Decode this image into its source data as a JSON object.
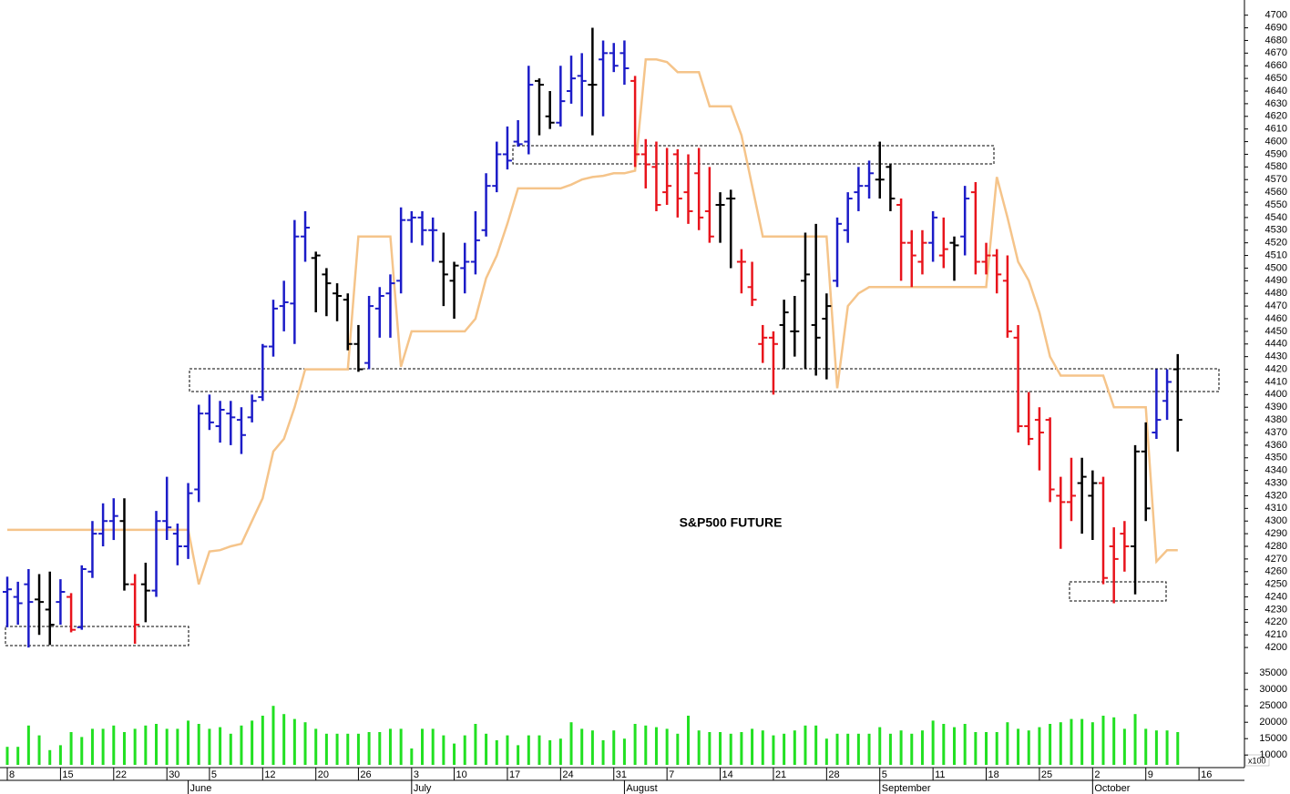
{
  "chart_data": {
    "type": "ohlc",
    "title": "S&P500 FUTURE",
    "xlim": [
      -0.685,
      116.27
    ],
    "ylim": [
      4190,
      4712
    ],
    "yticks": [
      4200,
      4210,
      4220,
      4230,
      4240,
      4250,
      4260,
      4270,
      4280,
      4290,
      4300,
      4310,
      4320,
      4330,
      4340,
      4350,
      4360,
      4370,
      4380,
      4390,
      4400,
      4410,
      4420,
      4430,
      4440,
      4450,
      4460,
      4470,
      4480,
      4490,
      4500,
      4510,
      4520,
      4530,
      4540,
      4550,
      4560,
      4570,
      4580,
      4590,
      4600,
      4610,
      4620,
      4630,
      4640,
      4650,
      4660,
      4670,
      4680,
      4690,
      4700
    ],
    "xticks": [
      {
        "value": 0,
        "label": "8"
      },
      {
        "value": 5,
        "label": "15"
      },
      {
        "value": 10,
        "label": "22"
      },
      {
        "value": 15,
        "label": "30"
      },
      {
        "value": 19,
        "label": "5"
      },
      {
        "value": 24,
        "label": "12"
      },
      {
        "value": 29,
        "label": "20"
      },
      {
        "value": 33,
        "label": "26"
      },
      {
        "value": 38,
        "label": "3"
      },
      {
        "value": 42,
        "label": "10"
      },
      {
        "value": 47,
        "label": "17"
      },
      {
        "value": 52,
        "label": "24"
      },
      {
        "value": 57,
        "label": "31"
      },
      {
        "value": 62,
        "label": "7"
      },
      {
        "value": 67,
        "label": "14"
      },
      {
        "value": 72,
        "label": "21"
      },
      {
        "value": 77,
        "label": "28"
      },
      {
        "value": 82,
        "label": "5"
      },
      {
        "value": 87,
        "label": "11"
      },
      {
        "value": 92,
        "label": "18"
      },
      {
        "value": 97,
        "label": "25"
      },
      {
        "value": 102,
        "label": "2"
      },
      {
        "value": 107,
        "label": "9"
      },
      {
        "value": 112,
        "label": "16"
      }
    ],
    "month_ticks": [
      {
        "value": 17,
        "label": "June"
      },
      {
        "value": 38,
        "label": "July"
      },
      {
        "value": 58,
        "label": "August"
      },
      {
        "value": 82,
        "label": "September"
      },
      {
        "value": 102,
        "label": "October"
      }
    ],
    "series": [
      {
        "color": "#1c1cc8",
        "x": [
          0,
          1,
          2,
          5,
          7,
          8,
          9,
          10,
          14,
          15,
          16,
          17,
          18,
          19,
          20,
          21,
          22,
          23,
          24,
          25,
          26,
          27,
          28,
          34,
          35,
          36,
          37,
          38,
          39,
          40,
          43,
          44,
          45,
          46,
          47,
          48,
          49,
          52,
          53,
          54,
          56,
          57,
          58,
          78,
          79,
          80,
          81,
          87,
          90,
          108,
          109
        ],
        "open": [
          4244,
          4240,
          4250,
          4236,
          4216,
          4260,
          4290,
          4300,
          4245,
          4300,
          4290,
          4280,
          4325,
          4385,
          4375,
          4385,
          4380,
          4382,
          4398,
          4438,
          4470,
          4472,
          4525,
          4425,
          4468,
          4480,
          4490,
          4538,
          4540,
          4530,
          4500,
          4505,
          4530,
          4565,
          4590,
          4600,
          4600,
          4615,
          4640,
          4652,
          4665,
          4670,
          4670,
          4490,
          4530,
          4560,
          4565,
          4520,
          4525,
          4370,
          4395
        ],
        "high": [
          4256,
          4252,
          4262,
          4254,
          4265,
          4300,
          4314,
          4318,
          4308,
          4335,
          4298,
          4330,
          4392,
          4400,
          4395,
          4395,
          4390,
          4400,
          4440,
          4475,
          4490,
          4538,
          4545,
          4478,
          4485,
          4495,
          4548,
          4545,
          4545,
          4540,
          4520,
          4545,
          4575,
          4600,
          4612,
          4617,
          4660,
          4660,
          4668,
          4670,
          4680,
          4678,
          4680,
          4540,
          4560,
          4580,
          4585,
          4545,
          4565,
          4420,
          4420
        ],
        "low": [
          4216,
          4218,
          4200,
          4218,
          4214,
          4255,
          4280,
          4285,
          4240,
          4285,
          4265,
          4270,
          4315,
          4372,
          4362,
          4360,
          4353,
          4378,
          4395,
          4430,
          4450,
          4440,
          4505,
          4420,
          4445,
          4445,
          4480,
          4520,
          4518,
          4505,
          4480,
          4495,
          4525,
          4560,
          4578,
          4596,
          4590,
          4612,
          4630,
          4620,
          4620,
          4655,
          4645,
          4485,
          4520,
          4545,
          4555,
          4505,
          4510,
          4365,
          4380
        ],
        "close": [
          4246,
          4235,
          4236,
          4244,
          4262,
          4290,
          4300,
          4304,
          4300,
          4295,
          4280,
          4322,
          4385,
          4378,
          4388,
          4382,
          4368,
          4395,
          4438,
          4468,
          4473,
          4525,
          4532,
          4470,
          4478,
          4488,
          4538,
          4540,
          4530,
          4530,
          4505,
          4522,
          4565,
          4590,
          4585,
          4598,
          4645,
          4632,
          4650,
          4648,
          4670,
          4660,
          4658,
          4535,
          4555,
          4565,
          4575,
          4540,
          4555,
          4380,
          4410
        ]
      },
      {
        "color": "#000000",
        "x": [
          3,
          4,
          11,
          13,
          29,
          30,
          31,
          32,
          33,
          41,
          42,
          50,
          51,
          55,
          67,
          68,
          73,
          74,
          75,
          76,
          77,
          82,
          83,
          89,
          101,
          102,
          106,
          107,
          110
        ],
        "open": [
          4238,
          4230,
          4300,
          4250,
          4508,
          4495,
          4480,
          4475,
          4440,
          4505,
          4490,
          4648,
          4620,
          4645,
          4550,
          4555,
          4455,
          4450,
          4490,
          4455,
          4460,
          4570,
          4580,
          4520,
          4330,
          4320,
          4280,
          4355,
          4420
        ],
        "high": [
          4258,
          4260,
          4318,
          4267,
          4513,
          4500,
          4488,
          4480,
          4455,
          4528,
          4505,
          4650,
          4640,
          4690,
          4560,
          4562,
          4475,
          4478,
          4528,
          4535,
          4480,
          4600,
          4582,
          4525,
          4350,
          4340,
          4360,
          4378,
          4432
        ],
        "low": [
          4210,
          4202,
          4245,
          4220,
          4465,
          4462,
          4458,
          4435,
          4418,
          4470,
          4460,
          4605,
          4610,
          4605,
          4520,
          4500,
          4420,
          4430,
          4420,
          4415,
          4412,
          4555,
          4545,
          4490,
          4290,
          4285,
          4242,
          4300,
          4355
        ],
        "close": [
          4236,
          4218,
          4250,
          4245,
          4510,
          4488,
          4478,
          4440,
          4420,
          4495,
          4502,
          4645,
          4615,
          4645,
          4550,
          4555,
          4465,
          4450,
          4495,
          4445,
          4470,
          4570,
          4555,
          4518,
          4335,
          4330,
          4355,
          4310,
          4380
        ]
      },
      {
        "color": "#e8141c",
        "x": [
          6,
          12,
          59,
          60,
          61,
          62,
          63,
          64,
          65,
          66,
          69,
          70,
          71,
          72,
          84,
          85,
          86,
          88,
          91,
          92,
          93,
          94,
          95,
          96,
          97,
          98,
          99,
          100,
          103,
          104,
          105
        ],
        "open": [
          4240,
          4250,
          4648,
          4590,
          4580,
          4560,
          4590,
          4560,
          4575,
          4545,
          4505,
          4485,
          4440,
          4445,
          4550,
          4520,
          4505,
          4510,
          4560,
          4505,
          4510,
          4490,
          4445,
          4375,
          4380,
          4380,
          4320,
          4315,
          4330,
          4280,
          4290
        ],
        "high": [
          4243,
          4258,
          4652,
          4602,
          4600,
          4595,
          4594,
          4590,
          4595,
          4580,
          4515,
          4505,
          4455,
          4450,
          4555,
          4530,
          4530,
          4540,
          4568,
          4520,
          4515,
          4510,
          4455,
          4402,
          4390,
          4382,
          4335,
          4350,
          4335,
          4295,
          4300
        ],
        "low": [
          4212,
          4203,
          4580,
          4563,
          4545,
          4550,
          4540,
          4535,
          4530,
          4520,
          4480,
          4470,
          4425,
          4400,
          4490,
          4485,
          4495,
          4500,
          4495,
          4495,
          4480,
          4445,
          4370,
          4360,
          4340,
          4315,
          4278,
          4300,
          4250,
          4235,
          4260
        ],
        "close": [
          4214,
          4218,
          4590,
          4582,
          4550,
          4565,
          4555,
          4545,
          4540,
          4525,
          4505,
          4475,
          4445,
          4440,
          4520,
          4510,
          4520,
          4515,
          4505,
          4510,
          4495,
          4450,
          4375,
          4365,
          4370,
          4325,
          4315,
          4320,
          4255,
          4270,
          4280
        ]
      }
    ],
    "line": {
      "color": "#f5c48a",
      "values": [
        4293,
        4293,
        4293,
        4293,
        4293,
        4293,
        4293,
        4293,
        4293,
        4293,
        4293,
        4293,
        4293,
        4293,
        4293,
        4293,
        4293,
        4293,
        4250,
        4276,
        4277,
        4280,
        4282,
        4300,
        4318,
        4355,
        4365,
        4390,
        4420,
        4420,
        4420,
        4420,
        4420,
        4525,
        4525,
        4525,
        4525,
        4422,
        4450,
        4450,
        4450,
        4450,
        4450,
        4450,
        4460,
        4492,
        4510,
        4535,
        4563,
        4563,
        4563,
        4563,
        4563,
        4566,
        4570,
        4572,
        4573,
        4575,
        4575,
        4577,
        4665,
        4665,
        4663,
        4655,
        4655,
        4655,
        4628,
        4628,
        4628,
        4605,
        4565,
        4525,
        4525,
        4525,
        4525,
        4525,
        4525,
        4525,
        4405,
        4470,
        4480,
        4485,
        4485,
        4485,
        4485,
        4485,
        4485,
        4485,
        4485,
        4485,
        4485,
        4485,
        4485,
        4572,
        4540,
        4505,
        4490,
        4465,
        4430,
        4415,
        4415,
        4415,
        4415,
        4415,
        4390,
        4390,
        4390,
        4390,
        4268,
        4277,
        4277
      ]
    },
    "volume": {
      "color": "#22e022",
      "ylim": [
        7000,
        37000
      ],
      "yticks": [
        10000,
        15000,
        20000,
        25000,
        30000,
        35000
      ],
      "unit": "x100",
      "values": [
        12500,
        12500,
        19000,
        16000,
        11500,
        13000,
        17000,
        15500,
        18000,
        18000,
        19000,
        17000,
        18000,
        19000,
        19500,
        18000,
        18000,
        20500,
        19500,
        18000,
        18500,
        16500,
        19000,
        20500,
        22000,
        25000,
        22500,
        21000,
        20000,
        18000,
        16500,
        16500,
        16500,
        16500,
        17000,
        17000,
        18000,
        18000,
        12000,
        18000,
        18000,
        16000,
        13500,
        16000,
        19500,
        16500,
        14500,
        16000,
        13000,
        16000,
        16000,
        14500,
        15000,
        20000,
        18000,
        17500,
        14500,
        17500,
        15000,
        19500,
        19000,
        18500,
        18000,
        16500,
        22000,
        17500,
        17000,
        17000,
        16500,
        17000,
        18000,
        17500,
        16000,
        16500,
        17500,
        19000,
        19000,
        15000,
        16500,
        16500,
        16500,
        16500,
        18500,
        16500,
        17500,
        16500,
        17500,
        20500,
        19500,
        18500,
        19500,
        17000,
        17000,
        17000,
        20000,
        18000,
        17500,
        18500,
        19500,
        20000,
        21000,
        21000,
        20000,
        22000,
        21500,
        18000,
        22500,
        18000,
        17500,
        17500,
        17000
      ]
    }
  }
}
